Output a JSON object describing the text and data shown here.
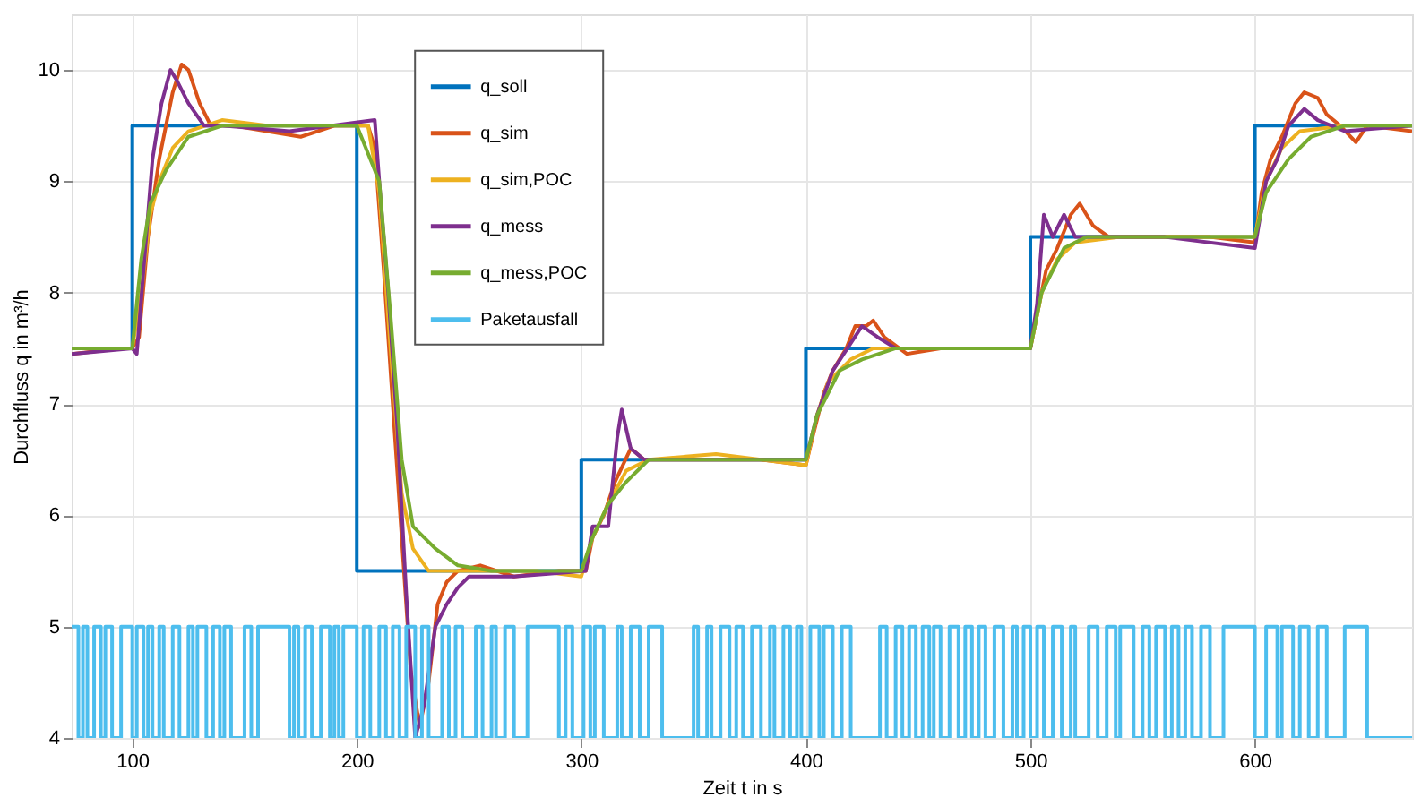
{
  "chart_data": {
    "type": "line",
    "xlabel": "Zeit t in s",
    "ylabel": "Durchfluss q in m³/h",
    "xlim": [
      73,
      670
    ],
    "ylim": [
      4,
      10.5
    ],
    "xticks": [
      100,
      200,
      300,
      400,
      500,
      600
    ],
    "yticks": [
      4,
      5,
      6,
      7,
      8,
      9,
      10
    ],
    "grid": true,
    "legend": "top",
    "marker": "none",
    "line_style": "solid",
    "series": [
      {
        "name": "q_soll",
        "type": "step",
        "color": "#0072bd",
        "x": [
          73,
          100,
          200,
          300,
          400,
          500,
          600,
          670
        ],
        "values": [
          7.5,
          9.5,
          5.5,
          6.5,
          7.5,
          8.5,
          9.5,
          9.5
        ]
      },
      {
        "name": "q_sim",
        "type": "line",
        "color": "#d95319",
        "x": [
          73,
          95,
          100,
          103,
          107,
          112,
          118,
          122,
          125,
          130,
          135,
          145,
          160,
          175,
          190,
          205,
          208,
          212,
          216,
          220,
          224,
          228,
          232,
          236,
          240,
          245,
          255,
          270,
          290,
          302,
          305,
          310,
          315,
          322,
          328,
          340,
          360,
          380,
          400,
          403,
          408,
          412,
          418,
          422,
          427,
          430,
          435,
          445,
          460,
          480,
          500,
          503,
          507,
          512,
          518,
          522,
          528,
          535,
          560,
          580,
          600,
          603,
          607,
          612,
          618,
          622,
          628,
          632,
          638,
          645,
          650,
          670
        ],
        "values": [
          7.45,
          7.5,
          7.5,
          7.6,
          8.5,
          9.2,
          9.8,
          10.05,
          10.0,
          9.7,
          9.5,
          9.5,
          9.45,
          9.4,
          9.5,
          9.5,
          9.3,
          8.2,
          7.0,
          5.8,
          4.6,
          4.1,
          4.5,
          5.2,
          5.4,
          5.5,
          5.55,
          5.45,
          5.5,
          5.5,
          5.8,
          6.0,
          6.3,
          6.6,
          6.5,
          6.5,
          6.5,
          6.5,
          6.45,
          6.7,
          7.1,
          7.3,
          7.5,
          7.7,
          7.7,
          7.75,
          7.6,
          7.45,
          7.5,
          7.5,
          7.5,
          7.8,
          8.2,
          8.4,
          8.7,
          8.8,
          8.6,
          8.5,
          8.5,
          8.5,
          8.45,
          8.9,
          9.2,
          9.4,
          9.7,
          9.8,
          9.75,
          9.6,
          9.5,
          9.35,
          9.5,
          9.45
        ]
      },
      {
        "name": "q_sim,POC",
        "type": "line",
        "color": "#edb120",
        "x": [
          73,
          100,
          104,
          108,
          112,
          118,
          125,
          140,
          160,
          190,
          205,
          210,
          215,
          220,
          225,
          232,
          250,
          280,
          300,
          305,
          312,
          320,
          330,
          360,
          400,
          405,
          410,
          420,
          430,
          460,
          500,
          505,
          512,
          520,
          540,
          600,
          605,
          612,
          620,
          640,
          670
        ],
        "values": [
          7.5,
          7.5,
          8.0,
          8.7,
          9.0,
          9.3,
          9.45,
          9.55,
          9.5,
          9.5,
          9.5,
          8.9,
          7.5,
          6.2,
          5.7,
          5.5,
          5.5,
          5.5,
          5.45,
          5.8,
          6.1,
          6.4,
          6.5,
          6.55,
          6.45,
          6.9,
          7.2,
          7.4,
          7.5,
          7.5,
          7.5,
          8.0,
          8.3,
          8.45,
          8.5,
          8.5,
          9.0,
          9.3,
          9.45,
          9.5,
          9.5
        ]
      },
      {
        "name": "q_mess",
        "type": "line",
        "color": "#7e2f8e",
        "x": [
          73,
          100,
          102,
          105,
          109,
          113,
          117,
          120,
          125,
          132,
          140,
          170,
          208,
          210,
          214,
          218,
          222,
          226,
          230,
          235,
          240,
          245,
          250,
          270,
          302,
          305,
          312,
          316,
          318,
          322,
          328,
          360,
          400,
          405,
          412,
          425,
          432,
          440,
          470,
          500,
          503,
          506,
          510,
          515,
          520,
          560,
          600,
          605,
          610,
          615,
          622,
          628,
          640,
          670
        ],
        "values": [
          7.45,
          7.5,
          7.45,
          8.2,
          9.2,
          9.7,
          10.0,
          9.9,
          9.7,
          9.5,
          9.5,
          9.45,
          9.55,
          9.0,
          8.0,
          6.8,
          5.3,
          4.0,
          4.3,
          5.0,
          5.2,
          5.35,
          5.45,
          5.45,
          5.5,
          5.9,
          5.9,
          6.7,
          6.95,
          6.6,
          6.5,
          6.5,
          6.5,
          6.9,
          7.3,
          7.7,
          7.6,
          7.5,
          7.5,
          7.5,
          7.9,
          8.7,
          8.5,
          8.7,
          8.5,
          8.5,
          8.4,
          9.0,
          9.2,
          9.5,
          9.65,
          9.55,
          9.45,
          9.5
        ]
      },
      {
        "name": "q_mess,POC",
        "type": "line",
        "color": "#77ac30",
        "x": [
          73,
          100,
          104,
          108,
          115,
          125,
          140,
          200,
          210,
          215,
          220,
          225,
          235,
          245,
          260,
          300,
          305,
          312,
          320,
          330,
          400,
          405,
          415,
          425,
          440,
          500,
          505,
          515,
          525,
          600,
          605,
          615,
          625,
          640,
          670
        ],
        "values": [
          7.5,
          7.5,
          8.3,
          8.8,
          9.1,
          9.4,
          9.5,
          9.5,
          9.0,
          7.8,
          6.5,
          5.9,
          5.7,
          5.55,
          5.5,
          5.5,
          5.8,
          6.1,
          6.3,
          6.5,
          6.5,
          6.9,
          7.3,
          7.4,
          7.5,
          7.5,
          8.0,
          8.4,
          8.5,
          8.5,
          8.9,
          9.2,
          9.4,
          9.5,
          9.5
        ]
      },
      {
        "name": "Paketausfall",
        "type": "step",
        "color": "#4dbeee",
        "x": [
          73,
          76,
          78,
          80,
          83,
          86,
          88,
          91,
          95,
          100,
          102,
          105,
          107,
          109,
          112,
          114,
          118,
          121,
          125,
          127,
          129,
          133,
          136,
          139,
          141,
          144,
          150,
          153,
          156,
          170,
          172,
          174,
          177,
          180,
          184,
          188,
          190,
          192,
          194,
          200,
          203,
          206,
          210,
          213,
          216,
          219,
          222,
          226,
          229,
          232,
          238,
          241,
          244,
          247,
          253,
          256,
          260,
          262,
          266,
          270,
          276,
          290,
          293,
          296,
          301,
          304,
          306,
          310,
          316,
          318,
          322,
          326,
          330,
          336,
          350,
          352,
          356,
          358,
          362,
          366,
          369,
          372,
          376,
          380,
          384,
          386,
          390,
          393,
          396,
          398,
          402,
          406,
          408,
          412,
          416,
          420,
          433,
          436,
          440,
          443,
          446,
          449,
          452,
          455,
          457,
          460,
          464,
          468,
          471,
          474,
          477,
          480,
          484,
          488,
          492,
          494,
          497,
          500,
          503,
          506,
          510,
          514,
          518,
          520,
          526,
          530,
          534,
          538,
          540,
          546,
          550,
          553,
          556,
          560,
          563,
          566,
          569,
          572,
          576,
          580,
          586,
          600,
          605,
          610,
          612,
          617,
          620,
          624,
          628,
          632,
          640,
          650,
          670
        ],
        "values": [
          5,
          4,
          5,
          4,
          5,
          4,
          5,
          4,
          5,
          4,
          5,
          4,
          5,
          4,
          5,
          4,
          5,
          4,
          5,
          4,
          5,
          4,
          5,
          4,
          5,
          4,
          5,
          4,
          5,
          4,
          5,
          4,
          5,
          4,
          5,
          4,
          5,
          4,
          5,
          4,
          5,
          4,
          5,
          4,
          5,
          4,
          5,
          4,
          5,
          4,
          5,
          4,
          5,
          4,
          5,
          4,
          5,
          4,
          5,
          4,
          5,
          4,
          5,
          4,
          5,
          4,
          5,
          4,
          5,
          4,
          5,
          4,
          5,
          4,
          5,
          4,
          5,
          4,
          5,
          4,
          5,
          4,
          5,
          4,
          5,
          4,
          5,
          4,
          5,
          4,
          5,
          4,
          5,
          4,
          5,
          4,
          5,
          4,
          5,
          4,
          5,
          4,
          5,
          4,
          5,
          4,
          5,
          4,
          5,
          4,
          5,
          4,
          5,
          4,
          5,
          4,
          5,
          4,
          5,
          4,
          5,
          4,
          5,
          4,
          5,
          4,
          5,
          4,
          5,
          4,
          5,
          4,
          5,
          4,
          5,
          4,
          5,
          4,
          5,
          4,
          5,
          4,
          5,
          4,
          5,
          4,
          5,
          4,
          5,
          4,
          5,
          4,
          4
        ]
      }
    ]
  }
}
